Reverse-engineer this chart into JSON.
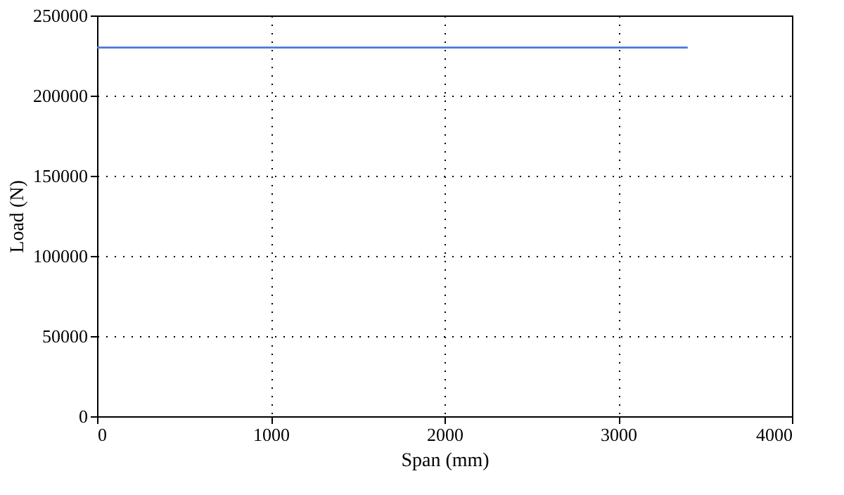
{
  "chart_data": {
    "type": "line",
    "xlabel": "Span (mm)",
    "ylabel": "Load (N)",
    "x": [
      0,
      3400
    ],
    "series": [
      {
        "color": "#4a78d8",
        "values": [
          230000,
          230000
        ]
      }
    ],
    "xlim": [
      0,
      4000
    ],
    "xticks": [
      0,
      1000,
      2000,
      3000,
      4000
    ],
    "ylim": [
      0,
      250000
    ],
    "yticks": [
      0,
      50000,
      100000,
      150000,
      200000,
      250000
    ],
    "grid": true,
    "marker": "none",
    "line_style": "solid"
  }
}
